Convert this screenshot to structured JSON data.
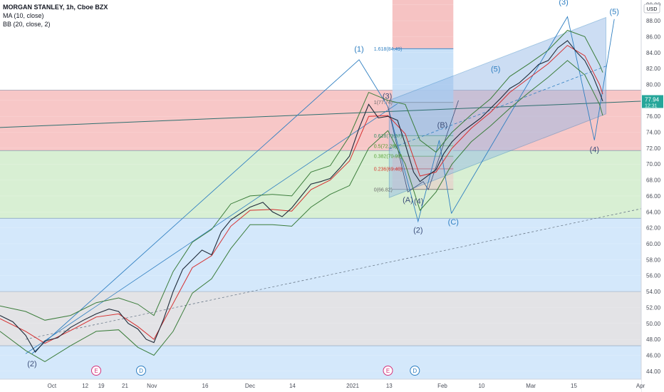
{
  "legend": {
    "symbol": "MORGAN STANLEY, 1h, Cboe BZX",
    "ma": "MA (10, close)",
    "bb": "BB (20, close, 2)"
  },
  "axis": {
    "currency": "USD",
    "price_label": "77.94",
    "countdown": "12:31"
  },
  "colors": {
    "price_line": "#1f2b3a",
    "ma": "#d62f2f",
    "bb": "#3b7d3b",
    "channel": "#2f7fc1",
    "price_tag": "#26a69a"
  },
  "chart_data": {
    "type": "line",
    "ylim": [
      43.0,
      90.6
    ],
    "xlim": [
      0,
      1
    ],
    "x_ticks": [
      {
        "label": "Oct",
        "t": 0.081
      },
      {
        "label": "12",
        "t": 0.133
      },
      {
        "label": "19",
        "t": 0.158
      },
      {
        "label": "21",
        "t": 0.195
      },
      {
        "label": "Nov",
        "t": 0.237
      },
      {
        "label": "16",
        "t": 0.32
      },
      {
        "label": "Dec",
        "t": 0.39
      },
      {
        "label": "14",
        "t": 0.456
      },
      {
        "label": "2021",
        "t": 0.55
      },
      {
        "label": "13",
        "t": 0.607
      },
      {
        "label": "Feb",
        "t": 0.69
      },
      {
        "label": "10",
        "t": 0.751
      },
      {
        "label": "Mar",
        "t": 0.828
      },
      {
        "label": "15",
        "t": 0.895
      },
      {
        "label": "Apr",
        "t": 0.999
      }
    ],
    "y_ticks": [
      44,
      46,
      48,
      50,
      52,
      54,
      56,
      58,
      60,
      62,
      64,
      66,
      68,
      70,
      72,
      74,
      76,
      78,
      80,
      82,
      84,
      86,
      88,
      90
    ],
    "price_series": [
      [
        0.0,
        51.0
      ],
      [
        0.02,
        50.2
      ],
      [
        0.04,
        48.5
      ],
      [
        0.055,
        46.4
      ],
      [
        0.07,
        47.8
      ],
      [
        0.09,
        48.2
      ],
      [
        0.11,
        49.5
      ],
      [
        0.13,
        50.4
      ],
      [
        0.15,
        51.2
      ],
      [
        0.17,
        51.8
      ],
      [
        0.185,
        51.5
      ],
      [
        0.2,
        50.0
      ],
      [
        0.215,
        49.3
      ],
      [
        0.228,
        48.0
      ],
      [
        0.24,
        47.6
      ],
      [
        0.255,
        50.5
      ],
      [
        0.27,
        54.0
      ],
      [
        0.285,
        56.8
      ],
      [
        0.3,
        58.0
      ],
      [
        0.315,
        59.2
      ],
      [
        0.33,
        58.6
      ],
      [
        0.345,
        61.5
      ],
      [
        0.36,
        63.0
      ],
      [
        0.375,
        63.8
      ],
      [
        0.39,
        64.6
      ],
      [
        0.41,
        65.2
      ],
      [
        0.425,
        64.0
      ],
      [
        0.44,
        63.4
      ],
      [
        0.455,
        64.5
      ],
      [
        0.47,
        66.0
      ],
      [
        0.485,
        67.5
      ],
      [
        0.5,
        67.8
      ],
      [
        0.515,
        68.2
      ],
      [
        0.53,
        69.5
      ],
      [
        0.545,
        71.0
      ],
      [
        0.56,
        74.5
      ],
      [
        0.575,
        77.5
      ],
      [
        0.59,
        75.8
      ],
      [
        0.605,
        76.0
      ],
      [
        0.62,
        75.5
      ],
      [
        0.632,
        72.5
      ],
      [
        0.645,
        69.0
      ],
      [
        0.655,
        67.8
      ],
      [
        0.668,
        68.6
      ],
      [
        0.68,
        69.3
      ],
      [
        0.692,
        71.3
      ],
      [
        0.705,
        72.8
      ],
      [
        0.72,
        74.0
      ],
      [
        0.735,
        74.9
      ],
      [
        0.75,
        75.8
      ],
      [
        0.765,
        77.0
      ],
      [
        0.78,
        78.2
      ],
      [
        0.795,
        79.5
      ],
      [
        0.81,
        80.2
      ],
      [
        0.825,
        81.3
      ],
      [
        0.84,
        82.5
      ],
      [
        0.855,
        83.0
      ],
      [
        0.87,
        84.6
      ],
      [
        0.885,
        85.5
      ],
      [
        0.9,
        84.0
      ],
      [
        0.912,
        83.0
      ],
      [
        0.925,
        81.0
      ],
      [
        0.935,
        79.0
      ],
      [
        0.94,
        77.9
      ]
    ],
    "ma_series": [
      [
        0.0,
        50.6
      ],
      [
        0.04,
        49.0
      ],
      [
        0.07,
        47.5
      ],
      [
        0.11,
        49.1
      ],
      [
        0.15,
        50.8
      ],
      [
        0.185,
        51.2
      ],
      [
        0.215,
        49.6
      ],
      [
        0.24,
        48.0
      ],
      [
        0.27,
        52.5
      ],
      [
        0.3,
        57.0
      ],
      [
        0.33,
        58.5
      ],
      [
        0.36,
        62.2
      ],
      [
        0.39,
        64.2
      ],
      [
        0.425,
        64.3
      ],
      [
        0.455,
        64.1
      ],
      [
        0.485,
        66.8
      ],
      [
        0.515,
        68.0
      ],
      [
        0.545,
        70.4
      ],
      [
        0.575,
        76.0
      ],
      [
        0.605,
        76.1
      ],
      [
        0.632,
        73.8
      ],
      [
        0.655,
        68.5
      ],
      [
        0.68,
        69.0
      ],
      [
        0.705,
        72.0
      ],
      [
        0.735,
        74.5
      ],
      [
        0.765,
        76.5
      ],
      [
        0.795,
        79.0
      ],
      [
        0.825,
        80.8
      ],
      [
        0.855,
        82.6
      ],
      [
        0.885,
        84.9
      ],
      [
        0.912,
        83.6
      ],
      [
        0.935,
        80.0
      ],
      [
        0.94,
        78.8
      ]
    ],
    "bb_upper": [
      [
        0.0,
        52.2
      ],
      [
        0.04,
        51.5
      ],
      [
        0.07,
        50.4
      ],
      [
        0.11,
        51.0
      ],
      [
        0.15,
        52.6
      ],
      [
        0.185,
        53.2
      ],
      [
        0.215,
        52.4
      ],
      [
        0.24,
        51.0
      ],
      [
        0.27,
        56.5
      ],
      [
        0.3,
        60.2
      ],
      [
        0.33,
        61.8
      ],
      [
        0.36,
        65.0
      ],
      [
        0.39,
        66.0
      ],
      [
        0.425,
        66.2
      ],
      [
        0.455,
        66.0
      ],
      [
        0.485,
        69.0
      ],
      [
        0.515,
        69.8
      ],
      [
        0.545,
        73.5
      ],
      [
        0.575,
        79.0
      ],
      [
        0.605,
        78.0
      ],
      [
        0.632,
        77.5
      ],
      [
        0.655,
        73.0
      ],
      [
        0.68,
        71.5
      ],
      [
        0.705,
        74.0
      ],
      [
        0.735,
        76.2
      ],
      [
        0.765,
        78.2
      ],
      [
        0.795,
        81.0
      ],
      [
        0.825,
        82.6
      ],
      [
        0.855,
        84.3
      ],
      [
        0.885,
        86.8
      ],
      [
        0.912,
        86.0
      ],
      [
        0.935,
        82.5
      ],
      [
        0.94,
        81.5
      ]
    ],
    "bb_lower": [
      [
        0.0,
        49.0
      ],
      [
        0.04,
        46.6
      ],
      [
        0.07,
        45.2
      ],
      [
        0.11,
        47.2
      ],
      [
        0.15,
        49.0
      ],
      [
        0.185,
        49.2
      ],
      [
        0.215,
        47.0
      ],
      [
        0.24,
        46.0
      ],
      [
        0.27,
        49.0
      ],
      [
        0.3,
        53.8
      ],
      [
        0.33,
        55.6
      ],
      [
        0.36,
        59.4
      ],
      [
        0.39,
        62.4
      ],
      [
        0.425,
        62.4
      ],
      [
        0.455,
        62.2
      ],
      [
        0.485,
        64.6
      ],
      [
        0.515,
        66.2
      ],
      [
        0.545,
        67.3
      ],
      [
        0.575,
        72.0
      ],
      [
        0.605,
        74.2
      ],
      [
        0.632,
        70.0
      ],
      [
        0.655,
        64.2
      ],
      [
        0.68,
        66.5
      ],
      [
        0.705,
        70.0
      ],
      [
        0.735,
        72.8
      ],
      [
        0.765,
        74.8
      ],
      [
        0.795,
        77.0
      ],
      [
        0.825,
        79.0
      ],
      [
        0.855,
        80.9
      ],
      [
        0.885,
        83.0
      ],
      [
        0.912,
        81.2
      ],
      [
        0.935,
        77.5
      ],
      [
        0.94,
        76.1
      ]
    ],
    "zones": [
      {
        "from": 71.7,
        "to": 79.3,
        "color": "#f7c7c7"
      },
      {
        "from": 63.2,
        "to": 71.7,
        "color": "#d8efd3"
      },
      {
        "from": 54.0,
        "to": 63.2,
        "color": "#d4e8fb"
      },
      {
        "from": 47.2,
        "to": 54.0,
        "color": "#e3e3e6"
      },
      {
        "from": 43.0,
        "to": 47.2,
        "color": "#d4e8fb"
      }
    ],
    "fib_levels": [
      {
        "label": "1.618(84.49)",
        "value": 84.49,
        "color": "#2f7fc1"
      },
      {
        "label": "1(77.74)",
        "value": 77.74,
        "color": "#6d6d6d"
      },
      {
        "label": "0.618(73.57)",
        "value": 73.57,
        "color": "#3b8f6a"
      },
      {
        "label": "0.5(72.28)",
        "value": 72.28,
        "color": "#4c9a2a"
      },
      {
        "label": "0.382(70.99)",
        "value": 70.99,
        "color": "#5aa33a"
      },
      {
        "label": "0.236(69.40)",
        "value": 69.4,
        "color": "#d9372e"
      },
      {
        "label": "0(66.82)",
        "value": 66.82,
        "color": "#6d6d6d"
      }
    ],
    "wave_labels": [
      {
        "text": "(1)",
        "t": 0.56,
        "y": 84.1,
        "style": "wave"
      },
      {
        "text": "(2)",
        "t": 0.05,
        "y": 44.6,
        "style": "wave-dark"
      },
      {
        "text": "(3)",
        "t": 0.604,
        "y": 78.2,
        "style": "wave-dark"
      },
      {
        "text": "(A)",
        "t": 0.636,
        "y": 65.2,
        "style": "wave-dark"
      },
      {
        "text": "(4)",
        "t": 0.653,
        "y": 65.0,
        "style": "wave-dark"
      },
      {
        "text": "(B)",
        "t": 0.69,
        "y": 74.6,
        "style": "wave-dark"
      },
      {
        "text": "(2)",
        "t": 0.652,
        "y": 61.4,
        "style": "wave-dark"
      },
      {
        "text": "(C)",
        "t": 0.707,
        "y": 62.4,
        "style": "wave"
      },
      {
        "text": "(5)",
        "t": 0.773,
        "y": 81.6,
        "style": "wave"
      },
      {
        "text": "(3)",
        "t": 0.879,
        "y": 90.0,
        "style": "wave"
      },
      {
        "text": "(4)",
        "t": 0.927,
        "y": 71.5,
        "style": "wave-dark"
      },
      {
        "text": "(5)",
        "t": 0.958,
        "y": 88.8,
        "style": "wave"
      }
    ],
    "events": [
      {
        "text": "E",
        "t": 0.15,
        "color": "#d4317a"
      },
      {
        "text": "D",
        "t": 0.22,
        "color": "#2f7fc1"
      },
      {
        "text": "E",
        "t": 0.605,
        "color": "#d4317a"
      },
      {
        "text": "D",
        "t": 0.647,
        "color": "#2f7fc1"
      }
    ]
  }
}
